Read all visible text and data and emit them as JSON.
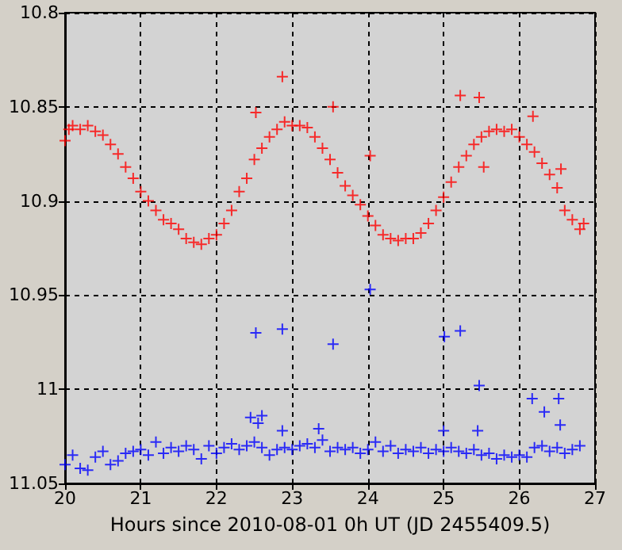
{
  "chart_data": {
    "type": "scatter",
    "xlabel": "Hours since 2010-08-01 0h UT (JD 2455409.5)",
    "xlim": [
      20,
      27
    ],
    "xticks": [
      20,
      21,
      22,
      23,
      24,
      25,
      26,
      27
    ],
    "ylim": [
      11.05,
      10.8
    ],
    "yticks": [
      10.8,
      10.85,
      10.9,
      10.95,
      11,
      11.05
    ],
    "grid": true,
    "marker": "cross",
    "series": [
      {
        "color": "#ff0000",
        "x": [
          20.0,
          20.05,
          20.1,
          20.2,
          20.3,
          20.4,
          20.5,
          20.6,
          20.7,
          20.8,
          20.9,
          21.0,
          21.1,
          21.2,
          21.3,
          21.4,
          21.5,
          21.6,
          21.7,
          21.8,
          21.9,
          22.0,
          22.1,
          22.2,
          22.3,
          22.4,
          22.5,
          22.6,
          22.7,
          22.8,
          22.9,
          23.0,
          23.1,
          23.2,
          23.3,
          23.4,
          23.5,
          23.6,
          23.7,
          23.8,
          23.9,
          24.0,
          24.1,
          24.2,
          24.3,
          24.4,
          24.5,
          24.6,
          24.7,
          24.8,
          24.9,
          25.0,
          25.1,
          25.2,
          25.3,
          25.4,
          25.5,
          25.6,
          25.7,
          25.8,
          25.9,
          26.0,
          26.1,
          26.2,
          26.3,
          26.4,
          26.5,
          26.6,
          26.7,
          26.8,
          26.85,
          22.52,
          22.87,
          23.54,
          24.03,
          25.22,
          25.47,
          25.53,
          26.18,
          26.55
        ],
        "values": [
          10.868,
          10.862,
          10.86,
          10.862,
          10.86,
          10.863,
          10.865,
          10.87,
          10.875,
          10.882,
          10.888,
          10.895,
          10.9,
          10.905,
          10.91,
          10.912,
          10.915,
          10.92,
          10.922,
          10.923,
          10.92,
          10.918,
          10.912,
          10.905,
          10.895,
          10.888,
          10.878,
          10.872,
          10.866,
          10.862,
          10.858,
          10.86,
          10.86,
          10.861,
          10.866,
          10.872,
          10.878,
          10.885,
          10.892,
          10.897,
          10.902,
          10.908,
          10.913,
          10.918,
          10.92,
          10.921,
          10.92,
          10.92,
          10.917,
          10.912,
          10.905,
          10.898,
          10.89,
          10.882,
          10.876,
          10.87,
          10.866,
          10.863,
          10.862,
          10.863,
          10.862,
          10.866,
          10.87,
          10.874,
          10.88,
          10.886,
          10.893,
          10.905,
          10.91,
          10.915,
          10.912,
          10.853,
          10.834,
          10.85,
          10.876,
          10.844,
          10.845,
          10.882,
          10.855,
          10.883
        ]
      },
      {
        "color": "#0000ff",
        "x": [
          20.0,
          20.1,
          20.2,
          20.3,
          20.4,
          20.5,
          20.6,
          20.7,
          20.8,
          20.9,
          21.0,
          21.1,
          21.2,
          21.3,
          21.4,
          21.5,
          21.6,
          21.7,
          21.8,
          21.9,
          22.0,
          22.1,
          22.2,
          22.3,
          22.4,
          22.5,
          22.6,
          22.7,
          22.8,
          22.9,
          23.0,
          23.1,
          23.2,
          23.3,
          23.4,
          23.5,
          23.6,
          23.7,
          23.8,
          23.9,
          24.0,
          24.1,
          24.2,
          24.3,
          24.4,
          24.5,
          24.6,
          24.7,
          24.8,
          24.9,
          25.0,
          25.1,
          25.2,
          25.3,
          25.4,
          25.5,
          25.6,
          25.7,
          25.8,
          25.9,
          26.0,
          26.1,
          26.2,
          26.3,
          26.4,
          26.5,
          26.6,
          26.7,
          26.8,
          22.45,
          22.55,
          22.6,
          22.87,
          22.52,
          22.87,
          23.54,
          24.03,
          25.01,
          25.22,
          25.47,
          26.17,
          26.33,
          26.52,
          26.54,
          25.0,
          25.45,
          23.35
        ],
        "values": [
          11.04,
          11.035,
          11.042,
          11.043,
          11.036,
          11.033,
          11.04,
          11.038,
          11.034,
          11.033,
          11.032,
          11.035,
          11.028,
          11.034,
          11.031,
          11.033,
          11.03,
          11.032,
          11.037,
          11.03,
          11.034,
          11.031,
          11.029,
          11.032,
          11.03,
          11.028,
          11.031,
          11.035,
          11.032,
          11.031,
          11.032,
          11.03,
          11.029,
          11.031,
          11.027,
          11.033,
          11.031,
          11.032,
          11.031,
          11.034,
          11.032,
          11.028,
          11.033,
          11.03,
          11.034,
          11.032,
          11.033,
          11.031,
          11.034,
          11.032,
          11.033,
          11.031,
          11.033,
          11.034,
          11.032,
          11.035,
          11.034,
          11.037,
          11.035,
          11.036,
          11.035,
          11.036,
          11.031,
          11.03,
          11.033,
          11.031,
          11.034,
          11.032,
          11.03,
          11.015,
          11.018,
          11.014,
          11.022,
          10.97,
          10.968,
          10.976,
          10.947,
          10.972,
          10.969,
          10.998,
          11.005,
          11.012,
          11.005,
          11.019,
          11.022,
          11.022,
          11.021
        ]
      }
    ]
  }
}
